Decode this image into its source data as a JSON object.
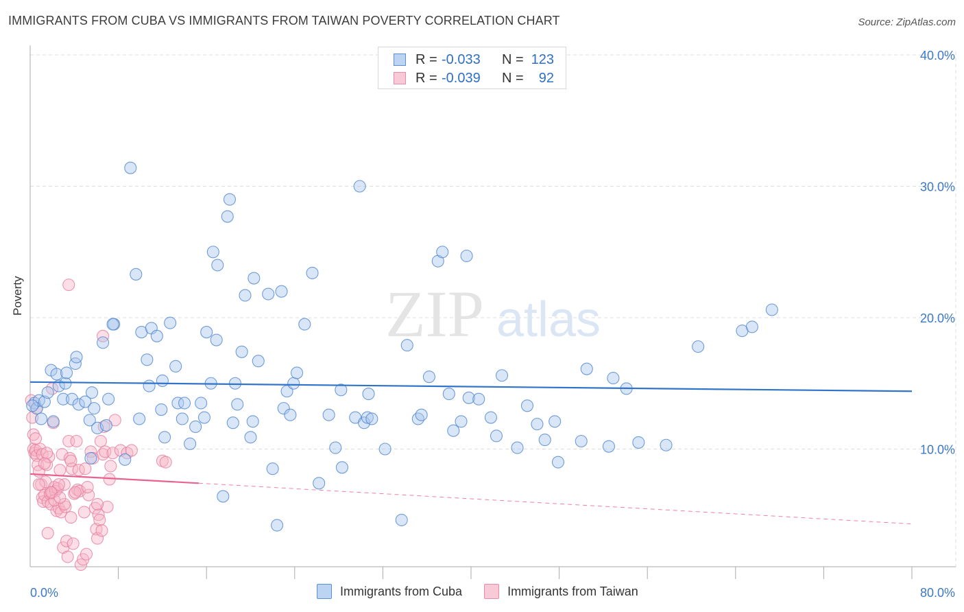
{
  "header": {
    "title": "IMMIGRANTS FROM CUBA VS IMMIGRANTS FROM TAIWAN POVERTY CORRELATION CHART",
    "source": "Source: ZipAtlas.com"
  },
  "legend": {
    "series": [
      {
        "r_label": "R =",
        "r_value": "-0.033",
        "n_label": "N =",
        "n_value": "123"
      },
      {
        "r_label": "R =",
        "r_value": "-0.039",
        "n_label": "N =",
        "n_value": "92"
      }
    ],
    "bottom": [
      "Immigrants from Cuba",
      "Immigrants from Taiwan"
    ]
  },
  "colors": {
    "cuba_fill": "#aac8ee",
    "cuba_stroke": "#4f86cf",
    "cuba_line": "#2f74c9",
    "taiwan_fill": "#f6b5c8",
    "taiwan_stroke": "#e77ea0",
    "taiwan_line": "#e8628d",
    "axis_label": "#3c78c8",
    "grid": "#dddddd"
  },
  "chart_data": {
    "type": "scatter",
    "title": "IMMIGRANTS FROM CUBA VS IMMIGRANTS FROM TAIWAN POVERTY CORRELATION CHART",
    "xlabel": "",
    "ylabel": "Poverty",
    "xlim": [
      0,
      80
    ],
    "ylim": [
      0,
      40
    ],
    "x_tick_labels": [
      "0.0%",
      "80.0%"
    ],
    "y_tick_labels": [
      "10.0%",
      "20.0%",
      "30.0%",
      "40.0%"
    ],
    "y_ticks": [
      10,
      20,
      30,
      40
    ],
    "x_minor_ticks": [
      8,
      16,
      24,
      32,
      40,
      48,
      56,
      64,
      72,
      80
    ],
    "grid": true,
    "legend_position": "top-center",
    "watermark": "ZIPatlas",
    "series": [
      {
        "name": "Immigrants from Cuba",
        "r": -0.033,
        "n": 123,
        "trend": {
          "x": [
            0,
            80
          ],
          "y": [
            15.1,
            14.4
          ]
        },
        "points": [
          [
            0.4,
            13.5
          ],
          [
            0.6,
            13.1
          ],
          [
            0.8,
            13.7
          ],
          [
            1.0,
            12.3
          ],
          [
            1.3,
            13.6
          ],
          [
            1.6,
            14.3
          ],
          [
            1.9,
            16.0
          ],
          [
            2.1,
            12.1
          ],
          [
            2.4,
            15.7
          ],
          [
            2.6,
            14.8
          ],
          [
            3.0,
            13.8
          ],
          [
            3.2,
            15.0
          ],
          [
            3.3,
            15.8
          ],
          [
            3.8,
            13.8
          ],
          [
            4.1,
            16.5
          ],
          [
            4.2,
            17.0
          ],
          [
            4.4,
            13.4
          ],
          [
            5.0,
            13.6
          ],
          [
            5.4,
            12.2
          ],
          [
            5.5,
            9.3
          ],
          [
            5.6,
            14.3
          ],
          [
            5.8,
            13.1
          ],
          [
            6.1,
            11.6
          ],
          [
            6.6,
            18.1
          ],
          [
            6.9,
            11.8
          ],
          [
            7.1,
            13.8
          ],
          [
            7.6,
            19.5
          ],
          [
            7.5,
            19.5
          ],
          [
            9.1,
            31.4
          ],
          [
            8.6,
            9.2
          ],
          [
            9.6,
            23.3
          ],
          [
            9.9,
            12.3
          ],
          [
            10.1,
            18.9
          ],
          [
            10.6,
            16.8
          ],
          [
            10.8,
            14.8
          ],
          [
            11.0,
            19.2
          ],
          [
            11.5,
            18.6
          ],
          [
            11.9,
            13.0
          ],
          [
            12.0,
            15.2
          ],
          [
            12.2,
            10.9
          ],
          [
            12.7,
            19.6
          ],
          [
            13.2,
            16.3
          ],
          [
            13.4,
            13.5
          ],
          [
            13.8,
            12.3
          ],
          [
            14.0,
            13.5
          ],
          [
            14.5,
            10.4
          ],
          [
            15.0,
            11.7
          ],
          [
            15.5,
            13.5
          ],
          [
            15.8,
            12.4
          ],
          [
            16.0,
            18.9
          ],
          [
            16.4,
            15.0
          ],
          [
            16.6,
            25.0
          ],
          [
            16.9,
            18.3
          ],
          [
            17.0,
            24.0
          ],
          [
            17.5,
            6.4
          ],
          [
            17.9,
            27.7
          ],
          [
            18.1,
            29.0
          ],
          [
            18.4,
            12.0
          ],
          [
            18.6,
            15.0
          ],
          [
            18.8,
            13.4
          ],
          [
            19.2,
            17.4
          ],
          [
            19.5,
            21.7
          ],
          [
            20.0,
            10.9
          ],
          [
            20.2,
            12.1
          ],
          [
            20.3,
            23.0
          ],
          [
            20.7,
            16.7
          ],
          [
            21.6,
            21.8
          ],
          [
            22.0,
            8.5
          ],
          [
            22.4,
            4.2
          ],
          [
            22.8,
            22.0
          ],
          [
            23.0,
            13.1
          ],
          [
            23.3,
            14.4
          ],
          [
            23.6,
            12.6
          ],
          [
            23.9,
            15.0
          ],
          [
            24.2,
            15.8
          ],
          [
            24.9,
            19.5
          ],
          [
            25.6,
            23.4
          ],
          [
            26.2,
            7.4
          ],
          [
            27.1,
            12.6
          ],
          [
            27.7,
            10.1
          ],
          [
            28.2,
            14.5
          ],
          [
            28.3,
            8.6
          ],
          [
            29.5,
            12.4
          ],
          [
            29.9,
            30.0
          ],
          [
            30.3,
            12.0
          ],
          [
            30.6,
            12.4
          ],
          [
            30.7,
            14.2
          ],
          [
            31.0,
            12.3
          ],
          [
            32.2,
            10.0
          ],
          [
            33.7,
            4.6
          ],
          [
            34.2,
            17.9
          ],
          [
            35.2,
            12.3
          ],
          [
            35.5,
            12.6
          ],
          [
            36.2,
            15.5
          ],
          [
            37.0,
            24.3
          ],
          [
            37.4,
            25.0
          ],
          [
            38.0,
            14.2
          ],
          [
            38.4,
            11.4
          ],
          [
            39.1,
            12.1
          ],
          [
            39.6,
            24.7
          ],
          [
            39.8,
            13.9
          ],
          [
            40.7,
            13.8
          ],
          [
            41.8,
            12.4
          ],
          [
            42.3,
            11.0
          ],
          [
            42.8,
            15.6
          ],
          [
            44.2,
            10.1
          ],
          [
            45.1,
            13.3
          ],
          [
            46.0,
            11.9
          ],
          [
            46.7,
            10.7
          ],
          [
            47.6,
            12.1
          ],
          [
            47.9,
            9.0
          ],
          [
            50.0,
            10.6
          ],
          [
            50.5,
            16.1
          ],
          [
            52.5,
            10.2
          ],
          [
            52.9,
            15.4
          ],
          [
            54.1,
            14.6
          ],
          [
            55.2,
            10.5
          ],
          [
            57.7,
            10.3
          ],
          [
            60.6,
            17.8
          ],
          [
            64.6,
            19.0
          ],
          [
            65.5,
            19.3
          ],
          [
            67.3,
            20.6
          ],
          [
            0.2,
            13.3
          ]
        ]
      },
      {
        "name": "Immigrants from Taiwan",
        "r": -0.039,
        "n": 92,
        "trend": {
          "x": [
            0,
            15.3
          ],
          "y": [
            8.1,
            7.4
          ],
          "dashed_to": {
            "x": 80,
            "y": 4.3
          }
        },
        "points": [
          [
            0.1,
            13.7
          ],
          [
            0.2,
            12.4
          ],
          [
            0.3,
            11.1
          ],
          [
            0.3,
            10.0
          ],
          [
            0.4,
            9.7
          ],
          [
            0.5,
            9.9
          ],
          [
            0.6,
            9.5
          ],
          [
            0.6,
            13.1
          ],
          [
            0.7,
            8.8
          ],
          [
            0.8,
            8.3
          ],
          [
            0.9,
            10.0
          ],
          [
            1.0,
            7.3
          ],
          [
            1.1,
            6.3
          ],
          [
            1.1,
            9.6
          ],
          [
            1.2,
            6.0
          ],
          [
            1.3,
            6.5
          ],
          [
            1.4,
            7.5
          ],
          [
            1.5,
            8.8
          ],
          [
            1.6,
            3.6
          ],
          [
            1.6,
            6.0
          ],
          [
            1.7,
            9.4
          ],
          [
            1.8,
            6.6
          ],
          [
            1.9,
            5.8
          ],
          [
            2.0,
            6.7
          ],
          [
            2.1,
            12.0
          ],
          [
            2.2,
            7.1
          ],
          [
            2.3,
            6.8
          ],
          [
            2.4,
            5.3
          ],
          [
            2.5,
            7.0
          ],
          [
            2.6,
            5.5
          ],
          [
            2.7,
            8.4
          ],
          [
            2.8,
            5.2
          ],
          [
            2.9,
            9.6
          ],
          [
            3.0,
            2.5
          ],
          [
            3.1,
            7.3
          ],
          [
            3.2,
            5.6
          ],
          [
            3.3,
            3.0
          ],
          [
            3.4,
            1.8
          ],
          [
            3.5,
            10.6
          ],
          [
            3.6,
            9.3
          ],
          [
            3.7,
            4.8
          ],
          [
            3.8,
            8.5
          ],
          [
            3.9,
            2.8
          ],
          [
            4.0,
            6.6
          ],
          [
            4.2,
            10.6
          ],
          [
            4.3,
            6.9
          ],
          [
            4.4,
            8.4
          ],
          [
            4.5,
            6.8
          ],
          [
            4.6,
            1.2
          ],
          [
            4.8,
            1.6
          ],
          [
            4.9,
            5.2
          ],
          [
            5.1,
            2.0
          ],
          [
            5.3,
            6.5
          ],
          [
            5.5,
            9.8
          ],
          [
            5.7,
            9.3
          ],
          [
            5.9,
            5.5
          ],
          [
            6.0,
            3.9
          ],
          [
            6.1,
            3.2
          ],
          [
            6.2,
            5.0
          ],
          [
            6.3,
            4.6
          ],
          [
            6.4,
            10.6
          ],
          [
            6.5,
            3.8
          ],
          [
            6.6,
            9.6
          ],
          [
            6.7,
            11.7
          ],
          [
            6.8,
            9.8
          ],
          [
            7.0,
            5.6
          ],
          [
            7.2,
            7.7
          ],
          [
            7.3,
            8.7
          ],
          [
            7.5,
            9.7
          ],
          [
            7.7,
            12.2
          ],
          [
            8.2,
            9.9
          ],
          [
            8.8,
            9.7
          ],
          [
            9.2,
            9.9
          ],
          [
            12.0,
            9.1
          ],
          [
            12.3,
            9.0
          ],
          [
            3.5,
            22.5
          ],
          [
            6.6,
            18.6
          ],
          [
            2.0,
            14.6
          ],
          [
            1.5,
            9.7
          ],
          [
            2.6,
            7.3
          ],
          [
            0.8,
            7.3
          ],
          [
            1.3,
            8.9
          ],
          [
            2.2,
            6.1
          ],
          [
            3.1,
            5.8
          ],
          [
            4.1,
            6.7
          ],
          [
            5.2,
            7.1
          ],
          [
            6.1,
            5.8
          ],
          [
            0.5,
            10.8
          ],
          [
            1.9,
            6.7
          ],
          [
            2.7,
            6.3
          ],
          [
            3.7,
            9.1
          ],
          [
            5.0,
            8.5
          ]
        ]
      }
    ]
  }
}
